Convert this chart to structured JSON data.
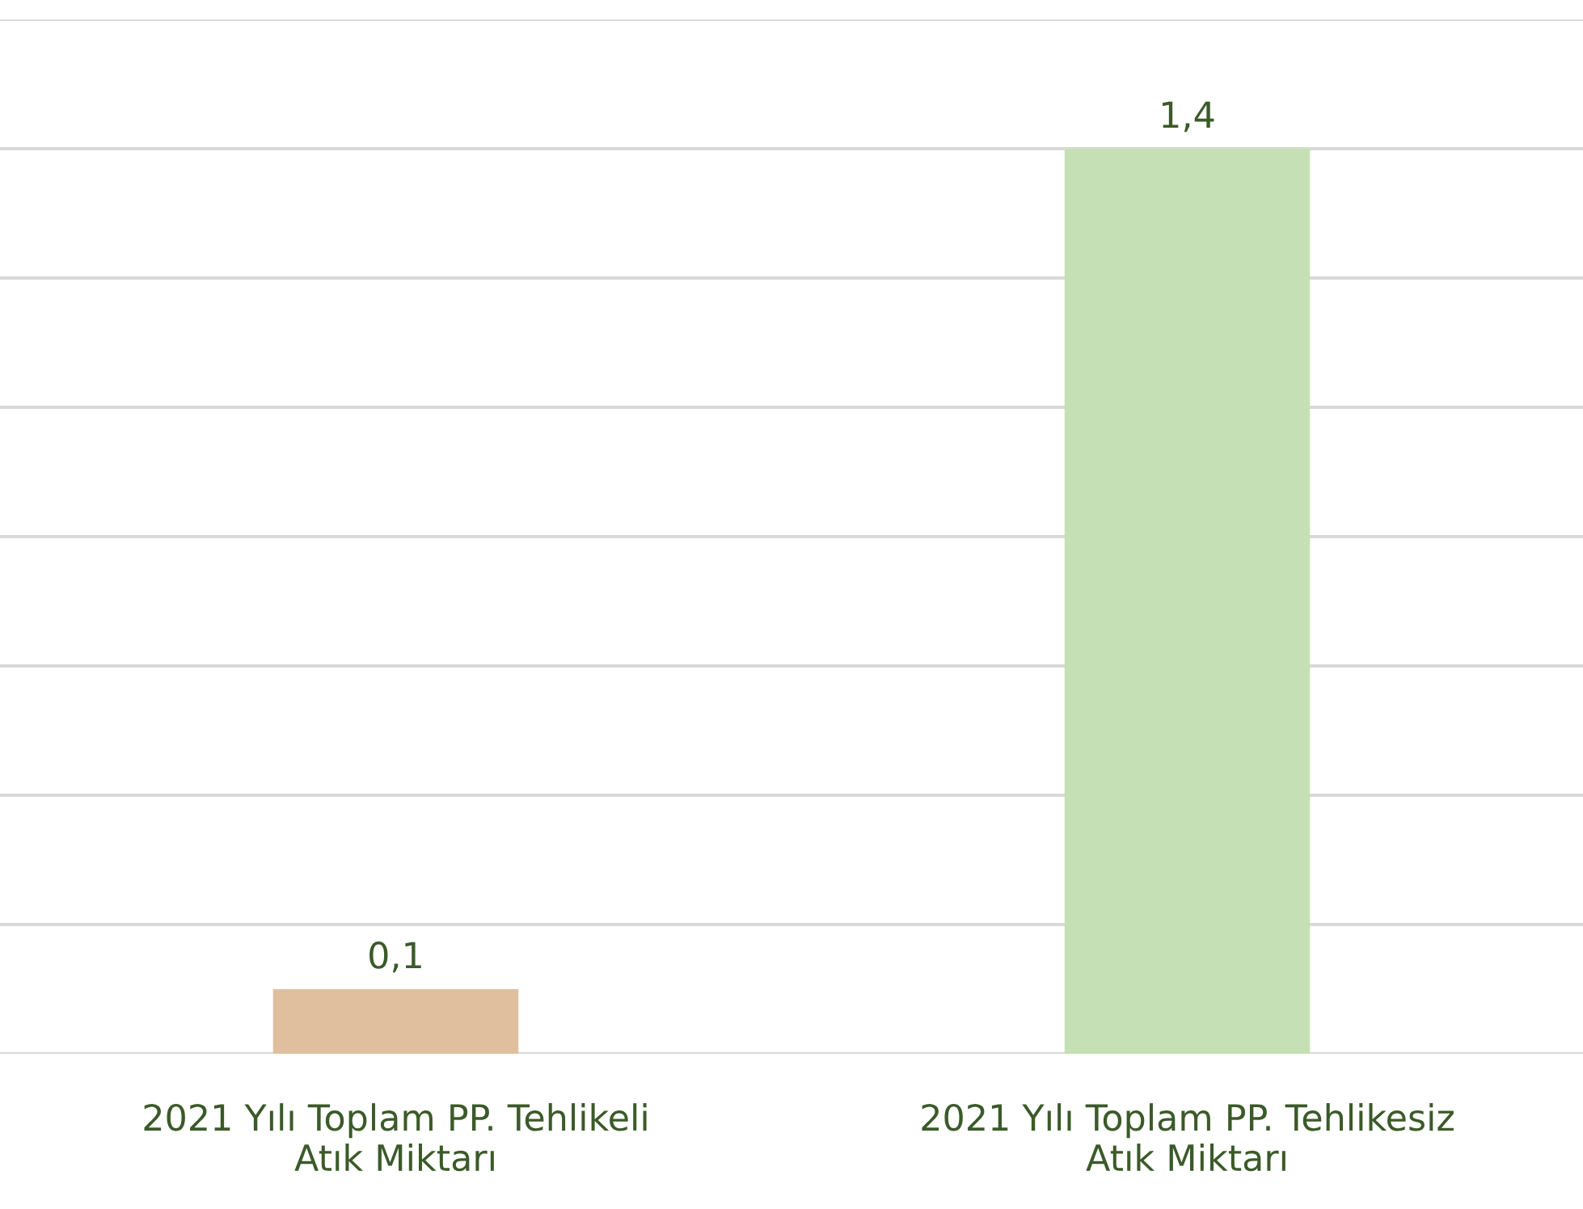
{
  "chart_data": {
    "type": "bar",
    "categories": [
      "2021 Yılı Toplam PP. Tehlikeli\nAtık Miktarı",
      "2021 Yılı Toplam PP. Tehlikesiz\nAtık Miktarı"
    ],
    "values": [
      0.1,
      1.4
    ],
    "colors": [
      "#dfbf9e",
      "#c5e0b4"
    ],
    "value_labels": [
      "0,1",
      "1,4"
    ],
    "ylim": [
      0,
      1.6
    ],
    "yticks": [
      {
        "value": 0,
        "label": null
      },
      {
        "value": 0.2,
        "label": null
      },
      {
        "value": 0.4,
        "label": null
      },
      {
        "value": 0.6,
        "label": null
      },
      {
        "value": 0.8,
        "label": null
      },
      {
        "value": 1.0,
        "label": null
      },
      {
        "value": 1.2,
        "label": null
      },
      {
        "value": 1.4,
        "label": null
      },
      {
        "value": 1.6,
        "label": null
      }
    ],
    "grid": "y",
    "tick_labels": "x"
  }
}
